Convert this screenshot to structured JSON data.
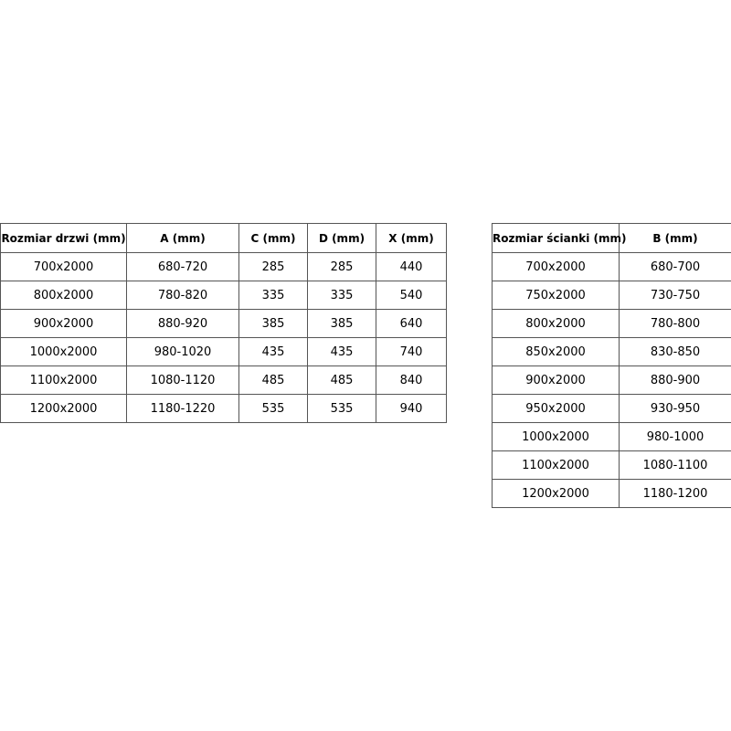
{
  "door_table": {
    "headers": [
      "Rozmiar drzwi (mm)",
      "A (mm)",
      "C (mm)",
      "D (mm)",
      "X (mm)"
    ],
    "rows": [
      [
        "700x2000",
        "680-720",
        "285",
        "285",
        "440"
      ],
      [
        "800x2000",
        "780-820",
        "335",
        "335",
        "540"
      ],
      [
        "900x2000",
        "880-920",
        "385",
        "385",
        "640"
      ],
      [
        "1000x2000",
        "980-1020",
        "435",
        "435",
        "740"
      ],
      [
        "1100x2000",
        "1080-1120",
        "485",
        "485",
        "840"
      ],
      [
        "1200x2000",
        "1180-1220",
        "535",
        "535",
        "940"
      ]
    ]
  },
  "wall_table": {
    "headers": [
      "Rozmiar ścianki (mm)",
      "B (mm)"
    ],
    "rows": [
      [
        "700x2000",
        "680-700"
      ],
      [
        "750x2000",
        "730-750"
      ],
      [
        "800x2000",
        "780-800"
      ],
      [
        "850x2000",
        "830-850"
      ],
      [
        "900x2000",
        "880-900"
      ],
      [
        "950x2000",
        "930-950"
      ],
      [
        "1000x2000",
        "980-1000"
      ],
      [
        "1100x2000",
        "1080-1100"
      ],
      [
        "1200x2000",
        "1180-1200"
      ]
    ]
  }
}
